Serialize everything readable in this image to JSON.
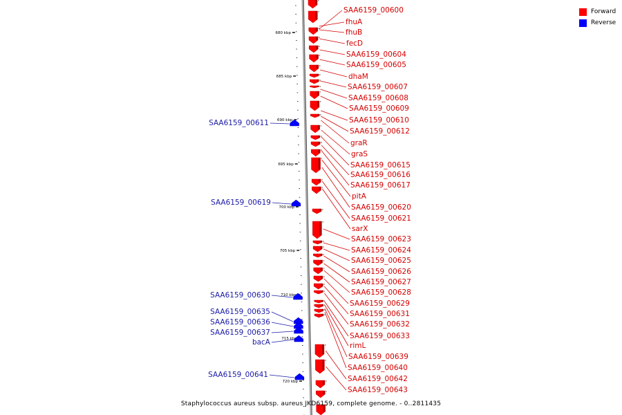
{
  "caption": "Staphylococcus aureus subsp. aureus JKD6159, complete genome. - 0..2811435",
  "legend": [
    {
      "label": "Forward",
      "color": "#ff0000"
    },
    {
      "label": "Reverse",
      "color": "#0000ff"
    }
  ],
  "colors": {
    "forward": "#ff0000",
    "forward_label": "#d40000",
    "reverse": "#0000ff",
    "reverse_label": "#1a1aa6",
    "backbone": "#a8a8a8"
  },
  "ruler": {
    "ticks": [
      "680 kbp",
      "685 kbp",
      "690 kbp",
      "695 kbp",
      "700 kbp",
      "705 kbp",
      "710 kbp",
      "715 kbp",
      "720 kbp"
    ]
  },
  "forward_genes": [
    "SAA6159_00600",
    "fhuA",
    "fhuB",
    "fecD",
    "SAA6159_00604",
    "SAA6159_00605",
    "dhaM",
    "SAA6159_00607",
    "SAA6159_00608",
    "SAA6159_00609",
    "SAA6159_00610",
    "SAA6159_00612",
    "graR",
    "graS",
    "SAA6159_00615",
    "SAA6159_00616",
    "SAA6159_00617",
    "pitA",
    "SAA6159_00620",
    "SAA6159_00621",
    "sarX",
    "SAA6159_00623",
    "SAA6159_00624",
    "SAA6159_00625",
    "SAA6159_00626",
    "SAA6159_00627",
    "SAA6159_00628",
    "SAA6159_00629",
    "SAA6159_00631",
    "SAA6159_00632",
    "SAA6159_00633",
    "rimL",
    "SAA6159_00639",
    "SAA6159_00640",
    "SAA6159_00642",
    "SAA6159_00643"
  ],
  "reverse_genes": [
    "SAA6159_00611",
    "SAA6159_00619",
    "SAA6159_00630",
    "SAA6159_00635",
    "SAA6159_00636",
    "SAA6159_00637",
    "bacA",
    "SAA6159_00641"
  ]
}
